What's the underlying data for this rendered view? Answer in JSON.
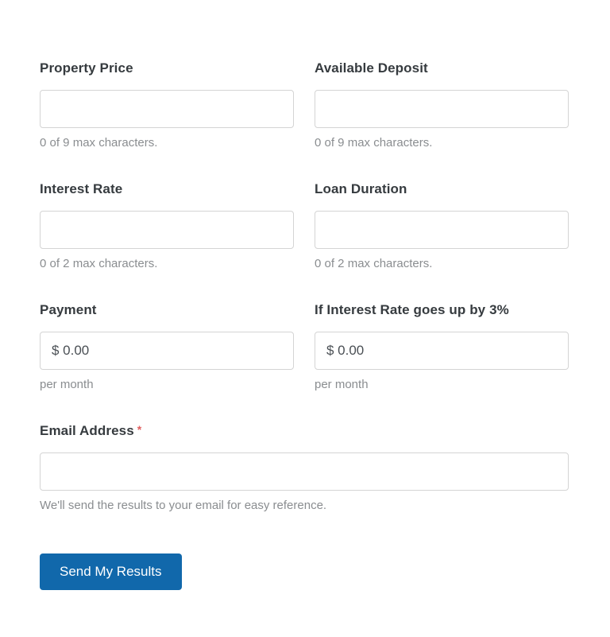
{
  "form": {
    "rows": [
      {
        "left": {
          "label": "Property Price",
          "value": "",
          "helper": "0 of 9 max characters."
        },
        "right": {
          "label": "Available Deposit",
          "value": "",
          "helper": "0 of 9 max characters."
        }
      },
      {
        "left": {
          "label": "Interest Rate",
          "value": "",
          "helper": "0 of 2 max characters."
        },
        "right": {
          "label": "Loan Duration",
          "value": "",
          "helper": "0 of 2 max characters."
        }
      },
      {
        "left": {
          "label": "Payment",
          "value": "$ 0.00",
          "helper": "per month"
        },
        "right": {
          "label": "If Interest Rate goes up by 3%",
          "value": "$ 0.00",
          "helper": "per month"
        }
      }
    ],
    "email": {
      "label": "Email Address",
      "required_marker": "*",
      "value": "",
      "helper": "We'll send the results to your email for easy reference."
    },
    "submit": {
      "label": "Send My Results"
    },
    "colors": {
      "button_background": "#1168ab",
      "button_text": "#ffffff",
      "required_marker": "#e05e5e",
      "label_text": "#363b3f",
      "helper_text": "#8a8d90",
      "input_border": "#d4d4d4"
    }
  }
}
